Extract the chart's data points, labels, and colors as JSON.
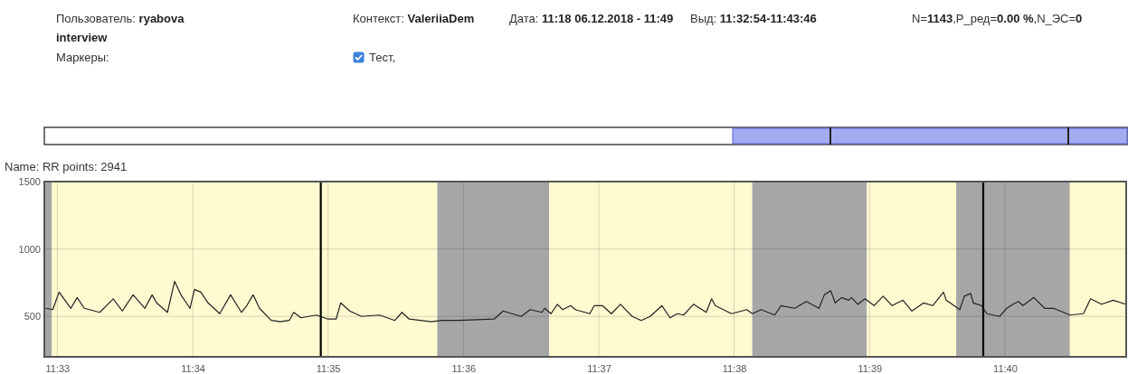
{
  "chart_data": {
    "type": "line",
    "title": "Name: RR points: 2941",
    "annotations": [
      "Пользователь: ryabova interview",
      "Контекст: ValeriiaDem",
      "Дата: 11:18 06.12.2018 - 11:49",
      "Выд: 11:32:54-11:43:46",
      "N=1143,P_ред=0.00 %,N_ЭС=0",
      "Маркеры:",
      "Тест,"
    ],
    "xlim": [
      11.5484,
      11.6816
    ],
    "ylim": [
      200,
      1500
    ],
    "xticks": [
      {
        "value": 11.55,
        "label": "11:33"
      },
      {
        "value": 11.56667,
        "label": "11:34"
      },
      {
        "value": 11.58333,
        "label": "11:35"
      },
      {
        "value": 11.6,
        "label": "11:36"
      },
      {
        "value": 11.61667,
        "label": "11:37"
      },
      {
        "value": 11.63333,
        "label": "11:38"
      },
      {
        "value": 11.65,
        "label": "11:39"
      },
      {
        "value": 11.66667,
        "label": "11:40"
      }
    ],
    "yticks": [
      500,
      1000,
      1500
    ],
    "grid": true,
    "marker": "none",
    "line_style": "solid",
    "bands": [
      {
        "axis": "x",
        "from": 11.5484,
        "to": 11.54933,
        "color": "#a6a6a6"
      },
      {
        "axis": "x",
        "from": 11.54933,
        "to": 11.59678,
        "color": "#fffad0"
      },
      {
        "axis": "x",
        "from": 11.59678,
        "to": 11.61056,
        "color": "#a6a6a6"
      },
      {
        "axis": "x",
        "from": 11.61056,
        "to": 11.63556,
        "color": "#fffad0"
      },
      {
        "axis": "x",
        "from": 11.63556,
        "to": 11.64967,
        "color": "#a6a6a6"
      },
      {
        "axis": "x",
        "from": 11.64967,
        "to": 11.66067,
        "color": "#fffad0"
      },
      {
        "axis": "x",
        "from": 11.66067,
        "to": 11.67467,
        "color": "#a6a6a6"
      },
      {
        "axis": "x",
        "from": 11.67467,
        "to": 11.6816,
        "color": "#fffad0"
      }
    ],
    "ref_lines": [
      {
        "axis": "x",
        "value": 11.58244,
        "color": "#000000"
      },
      {
        "axis": "x",
        "value": 11.664,
        "color": "#000000"
      }
    ],
    "series": [
      {
        "color": "#222222",
        "x": [
          11.54856,
          11.54944,
          11.55022,
          11.55167,
          11.55244,
          11.55333,
          11.55522,
          11.55689,
          11.558,
          11.55933,
          11.56078,
          11.56167,
          11.56222,
          11.56356,
          11.56444,
          11.56522,
          11.56633,
          11.56689,
          11.56767,
          11.56856,
          11.57,
          11.57133,
          11.57267,
          11.57333,
          11.57411,
          11.57489,
          11.57633,
          11.57744,
          11.57856,
          11.57911,
          11.58,
          11.58189,
          11.58333,
          11.58433,
          11.58489,
          11.586,
          11.58744,
          11.58967,
          11.59156,
          11.59244,
          11.59333,
          11.596,
          11.59744,
          11.59933,
          11.60378,
          11.60489,
          11.60711,
          11.60822,
          11.60967,
          11.61,
          11.61078,
          11.61156,
          11.61222,
          11.61322,
          11.61378,
          11.61556,
          11.61611,
          11.61711,
          11.61822,
          11.61933,
          11.62078,
          11.62189,
          11.623,
          11.62444,
          11.62544,
          11.62633,
          11.62711,
          11.62833,
          11.62989,
          11.63056,
          11.631,
          11.633,
          11.63489,
          11.63556,
          11.63667,
          11.63833,
          11.63911,
          11.64078,
          11.64222,
          11.64378,
          11.64444,
          11.64522,
          11.64578,
          11.64656,
          11.64744,
          11.64778,
          11.64856,
          11.64944,
          11.65056,
          11.65167,
          11.65278,
          11.65411,
          11.65522,
          11.65667,
          11.65778,
          11.65911,
          11.65944,
          11.66111,
          11.66167,
          11.66244,
          11.66278,
          11.66378,
          11.66444,
          11.666,
          11.66689,
          11.66767,
          11.66833,
          11.66889,
          11.67022,
          11.67156,
          11.67267,
          11.67467,
          11.67633,
          11.67722,
          11.67856,
          11.68,
          11.68156
        ],
        "values": [
          560,
          550,
          680,
          560,
          640,
          560,
          530,
          630,
          540,
          660,
          560,
          660,
          600,
          530,
          760,
          660,
          560,
          700,
          680,
          600,
          520,
          660,
          530,
          580,
          660,
          560,
          470,
          460,
          470,
          530,
          490,
          510,
          480,
          480,
          600,
          540,
          500,
          510,
          470,
          530,
          480,
          460,
          470,
          470,
          480,
          540,
          500,
          550,
          530,
          560,
          520,
          590,
          550,
          580,
          550,
          520,
          580,
          580,
          520,
          590,
          500,
          470,
          500,
          580,
          490,
          520,
          510,
          590,
          530,
          630,
          580,
          520,
          550,
          520,
          550,
          510,
          580,
          560,
          610,
          560,
          660,
          690,
          600,
          640,
          620,
          640,
          590,
          630,
          580,
          650,
          580,
          620,
          540,
          600,
          580,
          680,
          620,
          550,
          650,
          670,
          600,
          580,
          520,
          500,
          560,
          590,
          610,
          580,
          640,
          560,
          560,
          510,
          520,
          630,
          590,
          620,
          590
        ]
      }
    ]
  }
}
